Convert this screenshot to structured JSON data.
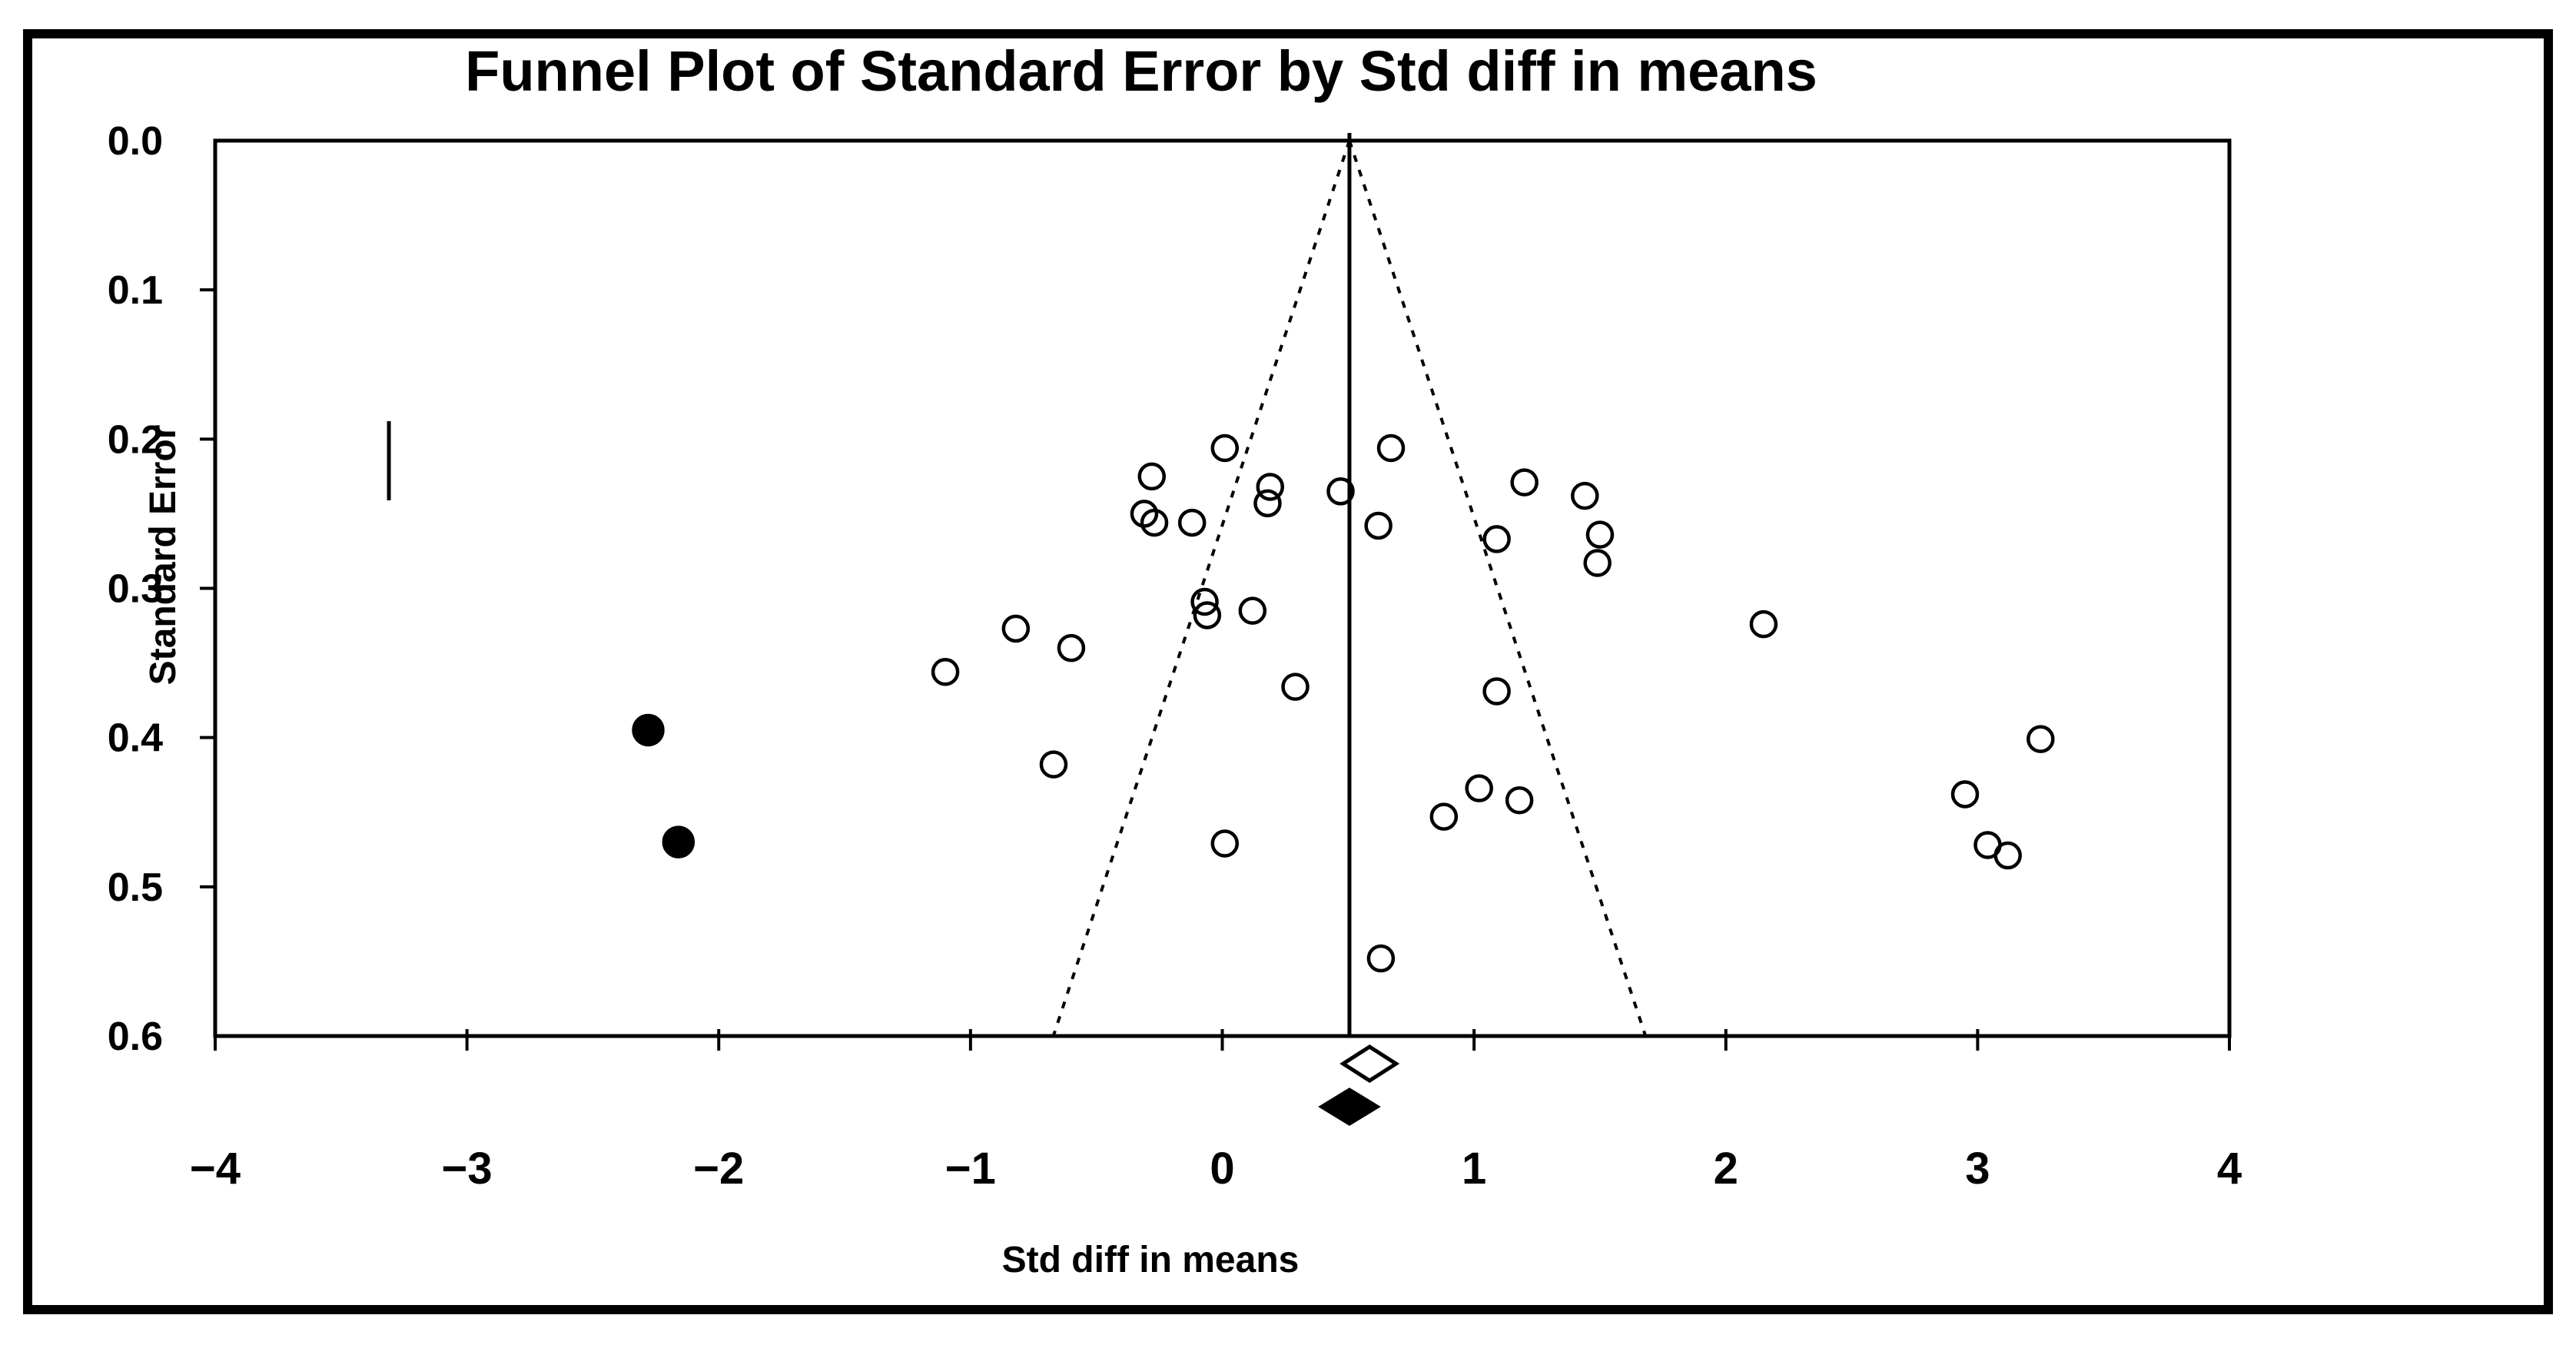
{
  "figure": {
    "background": "#ffffff",
    "frame_color": "#000000"
  },
  "chart_data": {
    "type": "scatter",
    "subtype": "funnel-plot-meta-analysis",
    "title": "Funnel Plot of Standard Error by Std diff in means",
    "xlabel": "Std diff in means",
    "ylabel": "Standard Error",
    "xlim": [
      -4,
      4
    ],
    "se_max": 0.6,
    "y_axis_inverted": true,
    "grid": false,
    "legend": "none",
    "x_tick_values": [
      -4,
      -3,
      -2,
      -1,
      0,
      1,
      2,
      3,
      4
    ],
    "x_tick_labels": [
      "−4",
      "−3",
      "−2",
      "−1",
      "0",
      "1",
      "2",
      "3",
      "4"
    ],
    "y_tick_values": [
      0.0,
      0.1,
      0.2,
      0.3,
      0.4,
      0.5,
      0.6
    ],
    "y_tick_labels": [
      "0.0",
      "0.1",
      "0.2",
      "0.3",
      "0.4",
      "0.5",
      "0.6"
    ],
    "series": [
      {
        "name": "observed-studies",
        "marker": "open-circle",
        "stroke": "#000000",
        "fill": "none",
        "points": [
          [
            0.01,
            0.206
          ],
          [
            0.67,
            0.206
          ],
          [
            -0.28,
            0.225
          ],
          [
            1.2,
            0.229
          ],
          [
            1.44,
            0.238
          ],
          [
            0.19,
            0.232
          ],
          [
            0.18,
            0.243
          ],
          [
            0.47,
            0.235
          ],
          [
            -0.31,
            0.25
          ],
          [
            -0.27,
            0.256
          ],
          [
            -0.12,
            0.256
          ],
          [
            0.62,
            0.258
          ],
          [
            1.09,
            0.267
          ],
          [
            1.5,
            0.264
          ],
          [
            1.49,
            0.283
          ],
          [
            -1.1,
            0.356
          ],
          [
            -0.82,
            0.327
          ],
          [
            -0.6,
            0.34
          ],
          [
            -0.07,
            0.309
          ],
          [
            -0.06,
            0.318
          ],
          [
            0.12,
            0.315
          ],
          [
            0.29,
            0.366
          ],
          [
            1.09,
            0.369
          ],
          [
            2.15,
            0.324
          ],
          [
            -0.67,
            0.418
          ],
          [
            0.88,
            0.453
          ],
          [
            1.02,
            0.434
          ],
          [
            1.18,
            0.442
          ],
          [
            0.01,
            0.471
          ],
          [
            0.63,
            0.548
          ],
          [
            2.95,
            0.438
          ],
          [
            3.04,
            0.472
          ],
          [
            3.12,
            0.479
          ],
          [
            3.25,
            0.401
          ]
        ]
      },
      {
        "name": "imputed-studies",
        "marker": "filled-circle",
        "stroke": "#000000",
        "fill": "#000000",
        "points": [
          [
            -2.28,
            0.395
          ],
          [
            -2.16,
            0.47
          ]
        ]
      }
    ],
    "funnel": {
      "center_x": 0.505,
      "z_multiplier": 1.96,
      "style": "dotted"
    },
    "mean_line_x": 0.505,
    "diamonds": [
      {
        "name": "observed-effect-diamond",
        "x": 0.585,
        "half_width": 0.105,
        "fill": "none"
      },
      {
        "name": "adjusted-effect-diamond",
        "x": 0.505,
        "half_width": 0.11,
        "fill": "#000000"
      }
    ],
    "stray_marker": {
      "x": -3.31,
      "se_from": 0.188,
      "se_to": 0.241
    }
  }
}
